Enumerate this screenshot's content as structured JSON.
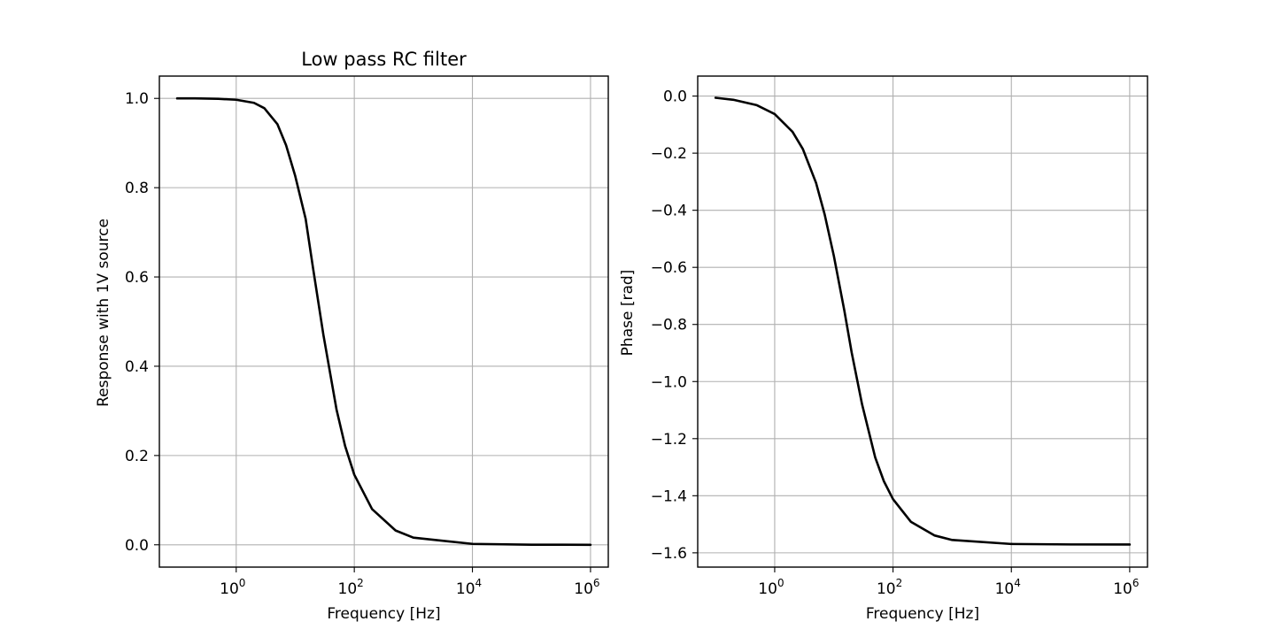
{
  "chart_data": [
    {
      "type": "line",
      "title": "Low pass RC filter",
      "xlabel": "Frequency [Hz]",
      "ylabel": "Response with 1V source",
      "xscale": "log",
      "xlim": [
        0.05,
        2000000
      ],
      "ylim": [
        -0.05,
        1.05
      ],
      "xticks": [
        {
          "value": 1,
          "label": "10",
          "exp": "0"
        },
        {
          "value": 100,
          "label": "10",
          "exp": "2"
        },
        {
          "value": 10000,
          "label": "10",
          "exp": "4"
        },
        {
          "value": 1000000,
          "label": "10",
          "exp": "6"
        }
      ],
      "yticks": [
        {
          "value": 0.0,
          "label": "0.0"
        },
        {
          "value": 0.2,
          "label": "0.2"
        },
        {
          "value": 0.4,
          "label": "0.4"
        },
        {
          "value": 0.6,
          "label": "0.6"
        },
        {
          "value": 0.8,
          "label": "0.8"
        },
        {
          "value": 1.0,
          "label": "1.0"
        }
      ],
      "grid": true,
      "series": [
        {
          "color": "#000000",
          "x": [
            0.1,
            0.2,
            0.5,
            1,
            2,
            3,
            5,
            7,
            10,
            15,
            20,
            30,
            50,
            70,
            100,
            200,
            500,
            1000,
            10000,
            100000,
            1000000
          ],
          "y": [
            1.0,
            1.0,
            0.999,
            0.997,
            0.99,
            0.978,
            0.942,
            0.895,
            0.826,
            0.73,
            0.62,
            0.47,
            0.303,
            0.221,
            0.157,
            0.08,
            0.032,
            0.016,
            0.002,
            0.0002,
            0.0
          ]
        }
      ]
    },
    {
      "type": "line",
      "title": "",
      "xlabel": "Frequency [Hz]",
      "ylabel": "Phase [rad]",
      "xscale": "log",
      "xlim": [
        0.05,
        2000000
      ],
      "ylim": [
        -1.65,
        0.07
      ],
      "xticks": [
        {
          "value": 1,
          "label": "10",
          "exp": "0"
        },
        {
          "value": 100,
          "label": "10",
          "exp": "2"
        },
        {
          "value": 10000,
          "label": "10",
          "exp": "4"
        },
        {
          "value": 1000000,
          "label": "10",
          "exp": "6"
        }
      ],
      "yticks": [
        {
          "value": 0.0,
          "label": "0.0"
        },
        {
          "value": -0.2,
          "label": "−0.2"
        },
        {
          "value": -0.4,
          "label": "−0.4"
        },
        {
          "value": -0.6,
          "label": "−0.6"
        },
        {
          "value": -0.8,
          "label": "−0.8"
        },
        {
          "value": -1.0,
          "label": "−1.0"
        },
        {
          "value": -1.2,
          "label": "−1.2"
        },
        {
          "value": -1.4,
          "label": "−1.4"
        },
        {
          "value": -1.6,
          "label": "−1.6"
        }
      ],
      "grid": true,
      "series": [
        {
          "color": "#000000",
          "x": [
            0.1,
            0.2,
            0.5,
            1,
            2,
            3,
            5,
            7,
            10,
            15,
            20,
            30,
            50,
            70,
            100,
            200,
            500,
            1000,
            10000,
            100000,
            1000000
          ],
          "y": [
            -0.006,
            -0.013,
            -0.032,
            -0.063,
            -0.125,
            -0.186,
            -0.304,
            -0.415,
            -0.56,
            -0.75,
            -0.898,
            -1.08,
            -1.266,
            -1.349,
            -1.412,
            -1.491,
            -1.539,
            -1.555,
            -1.569,
            -1.5706,
            -1.5708
          ]
        }
      ]
    }
  ]
}
